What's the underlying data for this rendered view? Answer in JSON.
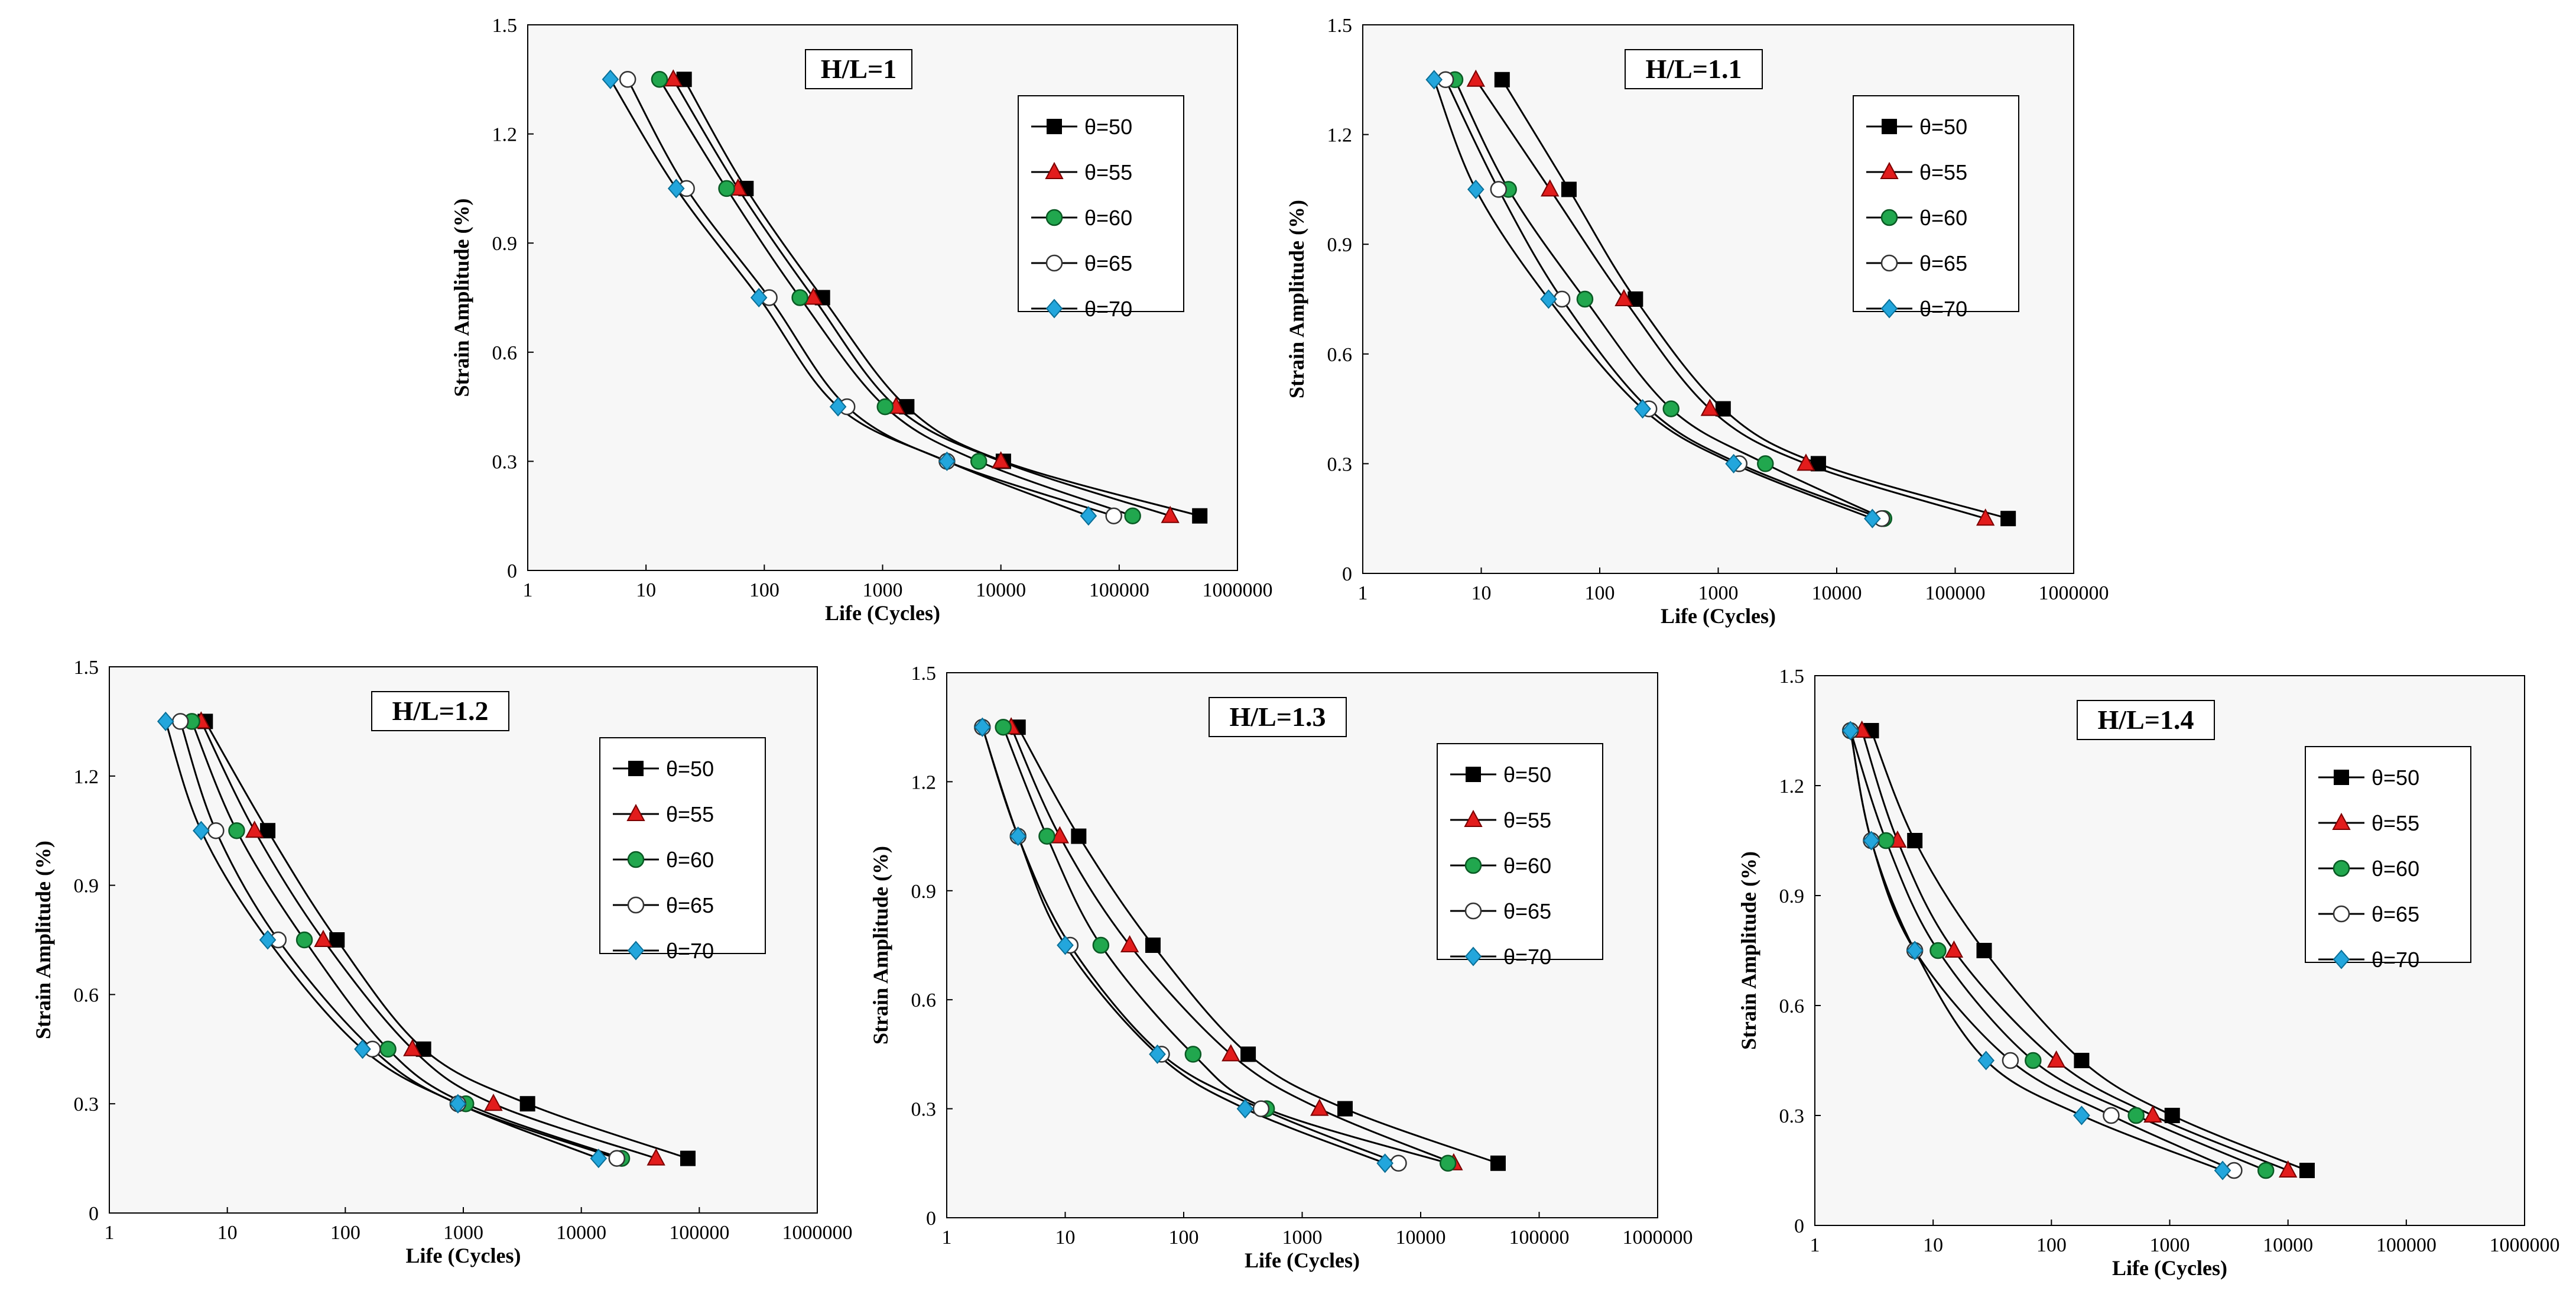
{
  "styles": {
    "plot_bg": "#f7f7f7",
    "line_color": "#000000",
    "markers": {
      "θ=50": {
        "shape": "square",
        "fill": "#000000",
        "stroke": "#000000"
      },
      "θ=55": {
        "shape": "triangle",
        "fill": "#e21c1c",
        "stroke": "#7a0000"
      },
      "θ=60": {
        "shape": "circle",
        "fill": "#21a74e",
        "stroke": "#0a5a24"
      },
      "θ=65": {
        "shape": "circle",
        "fill": "#ffffff",
        "stroke": "#333333"
      },
      "θ=70": {
        "shape": "diamond",
        "fill": "#23a6dc",
        "stroke": "#0a6e96"
      }
    }
  },
  "chart_data": [
    {
      "type": "scatter",
      "title": "H/L=1",
      "xlabel": "Life (Cycles)",
      "ylabel": "Strain Amplitude  (%)",
      "xscale": "log",
      "xlim": [
        1,
        1000000
      ],
      "ylim": [
        0,
        1.5
      ],
      "xticks": [
        "1",
        "10",
        "100",
        "1000",
        "10000",
        "100000",
        "1000000"
      ],
      "yticks": [
        "0",
        "0.3",
        "0.6",
        "0.9",
        "1.2",
        "1.5"
      ],
      "legend": "right",
      "y": [
        1.35,
        1.05,
        0.75,
        0.45,
        0.3,
        0.15
      ],
      "series": [
        {
          "name": "θ=50",
          "x": [
            21,
            70,
            310,
            1600,
            10500,
            480000
          ]
        },
        {
          "name": "θ=55",
          "x": [
            17,
            60,
            260,
            1300,
            10000,
            270000
          ]
        },
        {
          "name": "θ=60",
          "x": [
            13,
            48,
            200,
            1050,
            6500,
            130000
          ]
        },
        {
          "name": "θ=65",
          "x": [
            7,
            22,
            110,
            500,
            3500,
            90000
          ]
        },
        {
          "name": "θ=70",
          "x": [
            5,
            18,
            90,
            420,
            3500,
            55000
          ]
        }
      ]
    },
    {
      "type": "scatter",
      "title": "H/L=1.1",
      "xlabel": "Life (Cycles)",
      "ylabel": "Strain Amplitude  (%)",
      "xscale": "log",
      "xlim": [
        1,
        1000000
      ],
      "ylim": [
        0,
        1.5
      ],
      "xticks": [
        "1",
        "10",
        "100",
        "1000",
        "10000",
        "100000",
        "1000000"
      ],
      "yticks": [
        "0",
        "0.3",
        "0.6",
        "0.9",
        "1.2",
        "1.5"
      ],
      "legend": "right",
      "y": [
        1.35,
        1.05,
        0.75,
        0.45,
        0.3,
        0.15
      ],
      "series": [
        {
          "name": "θ=50",
          "x": [
            15,
            55,
            200,
            1100,
            7000,
            280000
          ]
        },
        {
          "name": "θ=55",
          "x": [
            9,
            38,
            160,
            850,
            5500,
            180000
          ]
        },
        {
          "name": "θ=60",
          "x": [
            6,
            17,
            75,
            400,
            2500,
            25000
          ]
        },
        {
          "name": "θ=65",
          "x": [
            5,
            14,
            48,
            260,
            1500,
            24000
          ]
        },
        {
          "name": "θ=70",
          "x": [
            4,
            9,
            37,
            230,
            1350,
            20000
          ]
        }
      ]
    },
    {
      "type": "scatter",
      "title": "H/L=1.2",
      "xlabel": "Life (Cycles)",
      "ylabel": "Strain Amplitude  (%)",
      "xscale": "log",
      "xlim": [
        1,
        1000000
      ],
      "ylim": [
        0,
        1.5
      ],
      "xticks": [
        "1",
        "10",
        "100",
        "1000",
        "10000",
        "100000",
        "1000000"
      ],
      "yticks": [
        "0",
        "0.3",
        "0.6",
        "0.9",
        "1.2",
        "1.5"
      ],
      "legend": "right",
      "y": [
        1.35,
        1.05,
        0.75,
        0.45,
        0.3,
        0.15
      ],
      "series": [
        {
          "name": "θ=50",
          "x": [
            6.5,
            22,
            85,
            460,
            3500,
            80000
          ]
        },
        {
          "name": "θ=55",
          "x": [
            6,
            17,
            65,
            370,
            1800,
            43000
          ]
        },
        {
          "name": "θ=60",
          "x": [
            5,
            12,
            45,
            230,
            1050,
            22000
          ]
        },
        {
          "name": "θ=65",
          "x": [
            4,
            8,
            27,
            170,
            900,
            20000
          ]
        },
        {
          "name": "θ=70",
          "x": [
            3,
            6,
            22,
            140,
            900,
            14000
          ]
        }
      ]
    },
    {
      "type": "scatter",
      "title": "H/L=1.3",
      "xlabel": "Life (Cycles)",
      "ylabel": "Strain Amplitude  (%)",
      "xscale": "log",
      "xlim": [
        1,
        1000000
      ],
      "ylim": [
        0,
        1.5
      ],
      "xticks": [
        "1",
        "10",
        "100",
        "1000",
        "10000",
        "100000",
        "1000000"
      ],
      "yticks": [
        "0",
        "0.3",
        "0.6",
        "0.9",
        "1.2",
        "1.5"
      ],
      "legend": "right",
      "y": [
        1.35,
        1.05,
        0.75,
        0.45,
        0.3,
        0.15
      ],
      "series": [
        {
          "name": "θ=50",
          "x": [
            4,
            13,
            55,
            350,
            2300,
            45000
          ]
        },
        {
          "name": "θ=55",
          "x": [
            3.5,
            9,
            35,
            250,
            1400,
            19000
          ]
        },
        {
          "name": "θ=60",
          "x": [
            3,
            7,
            20,
            120,
            500,
            17000
          ]
        },
        {
          "name": "θ=65",
          "x": [
            2,
            4,
            11,
            65,
            450,
            6500
          ]
        },
        {
          "name": "θ=70",
          "x": [
            2,
            4,
            10,
            60,
            330,
            5000
          ]
        }
      ]
    },
    {
      "type": "scatter",
      "title": "H/L=1.4",
      "xlabel": "Life (Cycles)",
      "ylabel": "Strain Amplitude  (%)",
      "xscale": "log",
      "xlim": [
        1,
        1000000
      ],
      "ylim": [
        0,
        1.5
      ],
      "xticks": [
        "1",
        "10",
        "100",
        "1000",
        "10000",
        "100000",
        "1000000"
      ],
      "yticks": [
        "0",
        "0.3",
        "0.6",
        "0.9",
        "1.2",
        "1.5"
      ],
      "legend": "right",
      "y": [
        1.35,
        1.05,
        0.75,
        0.45,
        0.3,
        0.15
      ],
      "series": [
        {
          "name": "θ=50",
          "x": [
            3,
            7,
            27,
            180,
            1050,
            14500
          ]
        },
        {
          "name": "θ=55",
          "x": [
            2.5,
            5,
            15,
            110,
            720,
            10000
          ]
        },
        {
          "name": "θ=60",
          "x": [
            2,
            4,
            11,
            70,
            520,
            6500
          ]
        },
        {
          "name": "θ=65",
          "x": [
            2,
            3,
            7,
            45,
            320,
            3500
          ]
        },
        {
          "name": "θ=70",
          "x": [
            2,
            3,
            7,
            28,
            180,
            2800
          ]
        }
      ]
    }
  ]
}
